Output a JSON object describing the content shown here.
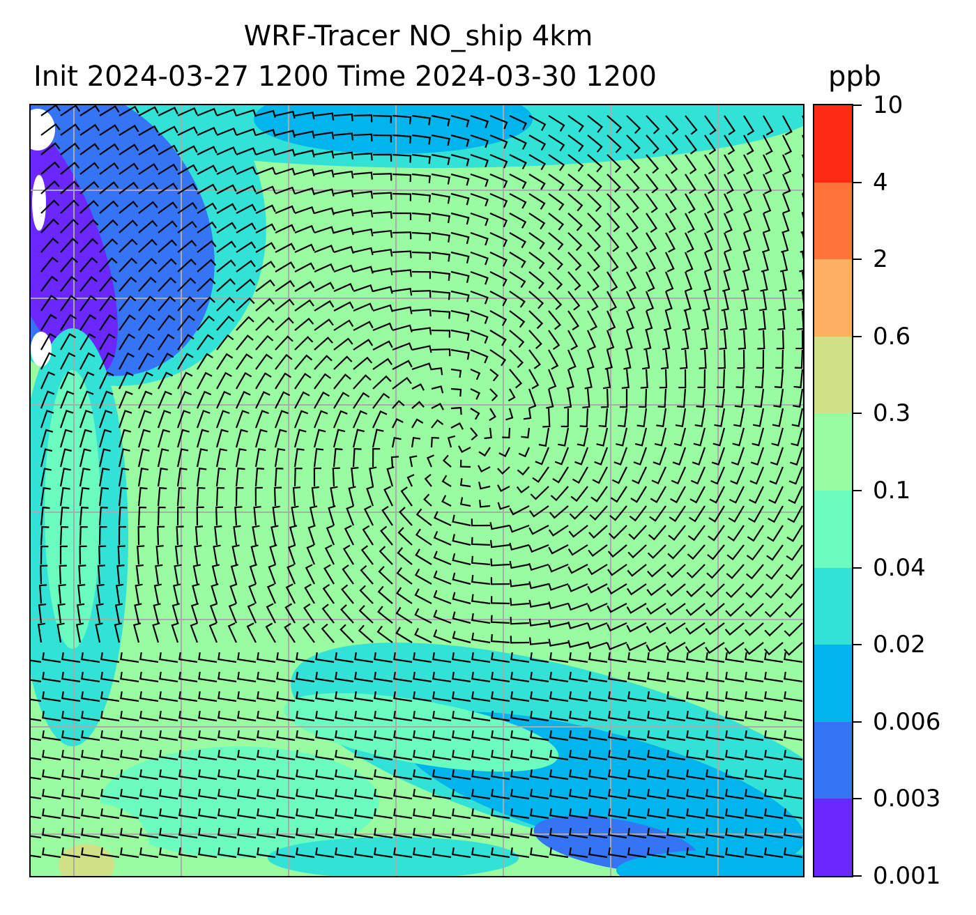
{
  "title": {
    "line1": "WRF-Tracer NO_ship 4km",
    "line2": "Init 2024-03-27 1200 Time 2024-03-30 1200"
  },
  "colorbar": {
    "units": "ppb",
    "levels": [
      "0.001",
      "0.003",
      "0.006",
      "0.02",
      "0.04",
      "0.1",
      "0.3",
      "0.6",
      "2",
      "4",
      "10"
    ],
    "colors": [
      "#6a28ff",
      "#3575f5",
      "#00b4ec",
      "#32e2d6",
      "#6bfcc0",
      "#9afca0",
      "#d0e087",
      "#ffb060",
      "#ff7239",
      "#ff2a14"
    ]
  }
}
